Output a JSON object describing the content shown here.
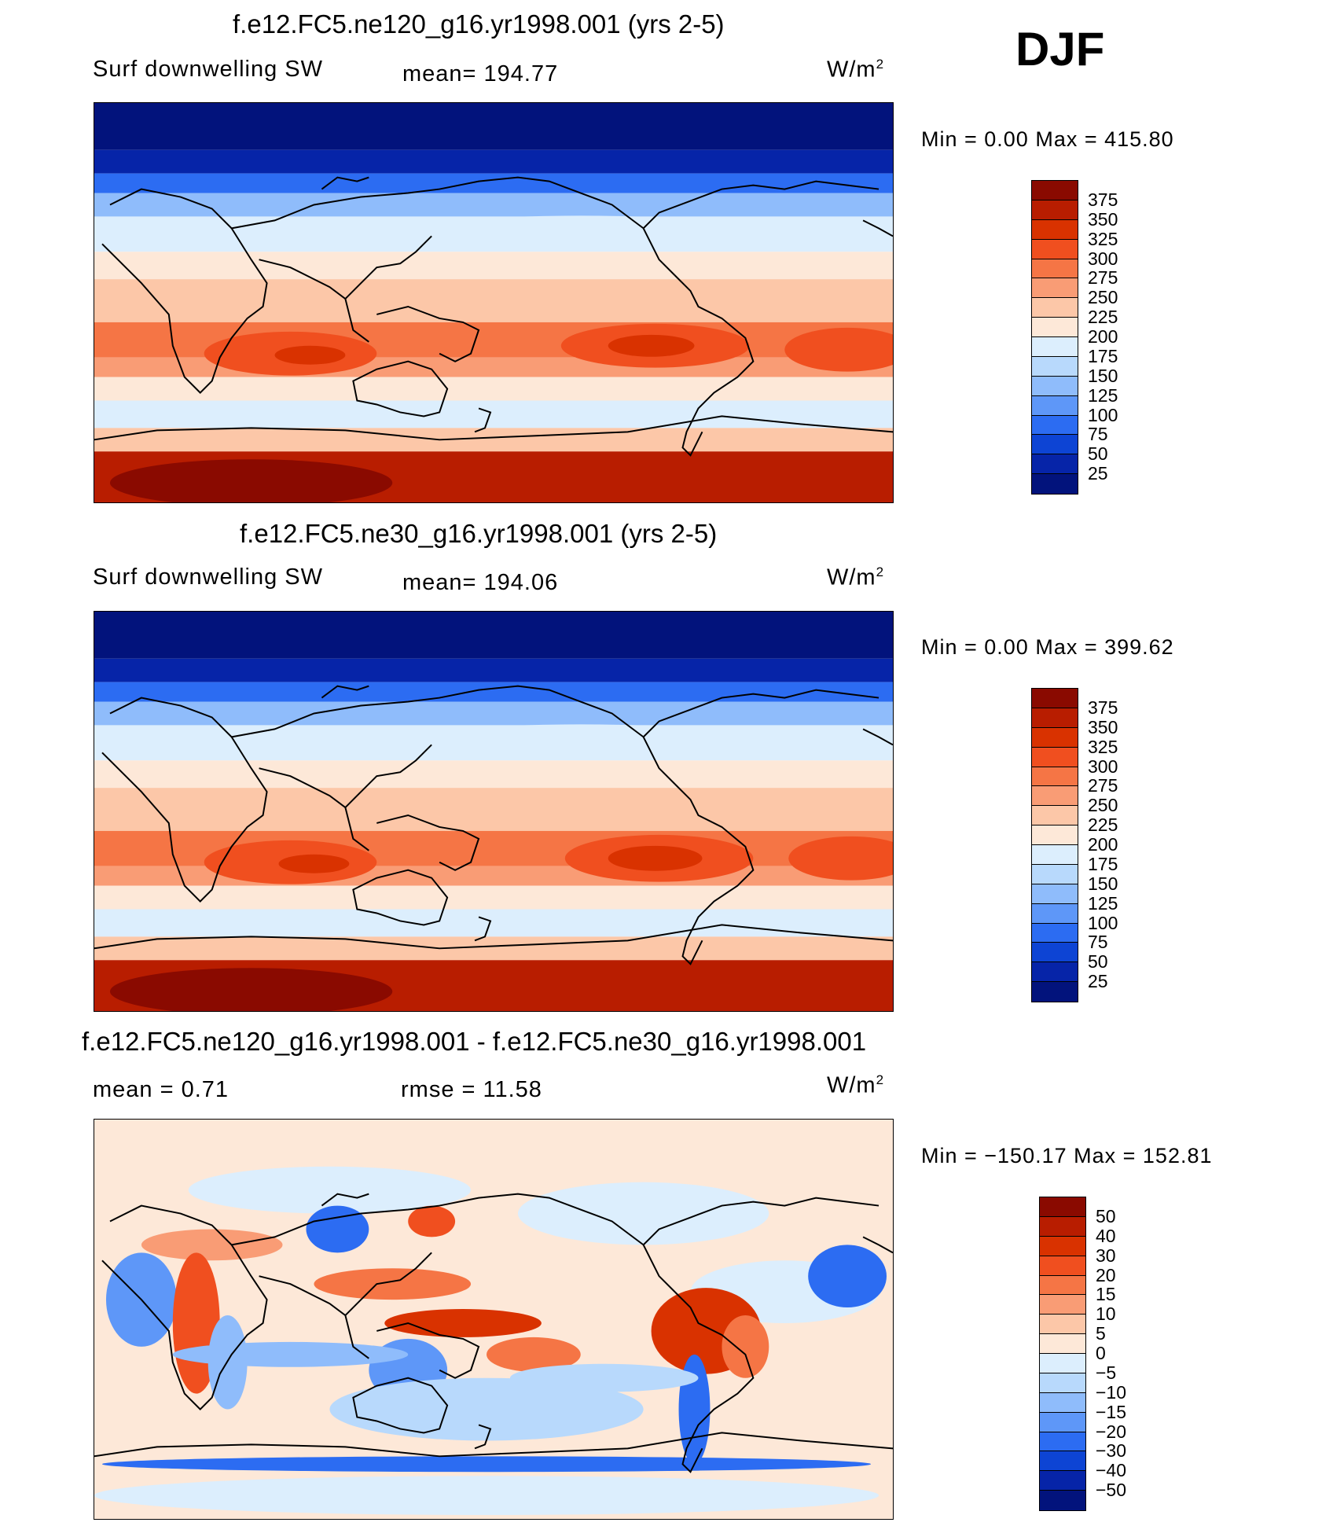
{
  "season": "DJF",
  "panels": [
    {
      "title": "f.e12.FC5.ne120_g16.yr1998.001 (yrs 2-5)",
      "variable": "Surf  downwelling SW",
      "stat": "mean=  194.77",
      "units_base": "W/m",
      "units_exp": "2",
      "minmax": "Min  =     0.00  Max  =  415.80",
      "map_kind": "field"
    },
    {
      "title": "f.e12.FC5.ne30_g16.yr1998.001 (yrs 2-5)",
      "variable": "Surf  downwelling SW",
      "stat": "mean=  194.06",
      "units_base": "W/m",
      "units_exp": "2",
      "minmax": "Min  =     0.00  Max  =  399.62",
      "map_kind": "field"
    },
    {
      "title": "f.e12.FC5.ne120_g16.yr1998.001 - f.e12.FC5.ne30_g16.yr1998.001",
      "variable": "mean  =     0.71",
      "stat": "rmse  =    11.58",
      "units_base": "W/m",
      "units_exp": "2",
      "minmax": "Min  = −150.17  Max  =  152.81",
      "map_kind": "diff"
    }
  ],
  "colorbars": {
    "field": {
      "labels": [
        "375",
        "350",
        "325",
        "300",
        "275",
        "250",
        "225",
        "200",
        "175",
        "150",
        "125",
        "100",
        "75",
        "50",
        "25"
      ],
      "colors": [
        "#8a0a00",
        "#b81d00",
        "#d93200",
        "#f04f1f",
        "#f57545",
        "#f99c75",
        "#fcc7a8",
        "#fde8d8",
        "#dceefd",
        "#b8d9fc",
        "#8fbcfb",
        "#5e97f8",
        "#2c6cf2",
        "#0d44d4",
        "#0624a8",
        "#02137c"
      ]
    },
    "diff": {
      "labels": [
        "50",
        "40",
        "30",
        "20",
        "15",
        "10",
        "5",
        "0",
        "−5",
        "−10",
        "−15",
        "−20",
        "−30",
        "−40",
        "−50"
      ],
      "colors": [
        "#8a0a00",
        "#b81d00",
        "#d93200",
        "#f04f1f",
        "#f57545",
        "#f99c75",
        "#fcc7a8",
        "#fde8d8",
        "#dceefd",
        "#b8d9fc",
        "#8fbcfb",
        "#5e97f8",
        "#2c6cf2",
        "#0d44d4",
        "#0624a8",
        "#02137c"
      ]
    }
  }
}
